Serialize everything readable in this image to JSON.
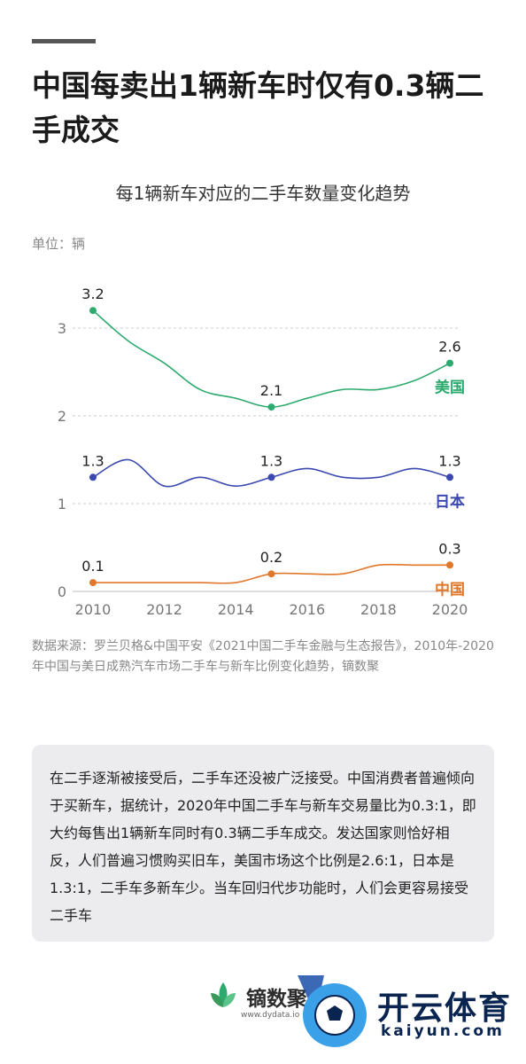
{
  "headline": "中国每卖出1辆新车时仅有0.3辆二手成交",
  "unit_label": "单位：辆",
  "source": "数据来源：罗兰贝格&中国平安《2021中国二手车金融与生态报告》，2010年-2020年中国与美日成熟汽车市场二手车与新车比例变化趋势，镝数聚",
  "note": "在二手逐渐被接受后，二手车还没被广泛接受。中国消费者普遍倾向于买新车，据统计，2020年中国二手车与新车交易量比为0.3:1，即大约每售出1辆新车同时有0.3辆二手车成交。发达国家则恰好相反，人们普遍习惯购买旧车，美国市场这个比例是2.6:1，日本是1.3:1，二手车多新车少。当车回归代步功能时，人们会更容易接受二手车",
  "brand": {
    "name": "镝数聚",
    "url": "www.dydata.io",
    "partner_name": "开云体育",
    "partner_url": "kaiyun.com"
  },
  "colors": {
    "us": "#2eaa6e",
    "japan": "#3a48b0",
    "china": "#e0782c",
    "grid": "#cccccc",
    "axis_text": "#777777"
  },
  "icons": [
    "leaf-logo-icon",
    "soccer-ball-icon"
  ],
  "chart_data": {
    "type": "line",
    "title": "每1辆新车对应的二手车数量变化趋势",
    "ylabel": "单位：辆",
    "xlim": [
      2010,
      2020
    ],
    "ylim": [
      0,
      3.2
    ],
    "x_ticks": [
      2010,
      2012,
      2014,
      2016,
      2018,
      2020
    ],
    "y_ticks": [
      0,
      1,
      2,
      3
    ],
    "grid": "horizontal dashed",
    "series": [
      {
        "name": "美国",
        "color": "#2eaa6e",
        "points": [
          [
            2010,
            3.2
          ],
          [
            2011,
            2.85
          ],
          [
            2012,
            2.6
          ],
          [
            2013,
            2.3
          ],
          [
            2014,
            2.2
          ],
          [
            2015,
            2.1
          ],
          [
            2016,
            2.2
          ],
          [
            2017,
            2.3
          ],
          [
            2018,
            2.3
          ],
          [
            2019,
            2.4
          ],
          [
            2020,
            2.6
          ]
        ],
        "labels": [
          {
            "x": 2010,
            "text": "3.2"
          },
          {
            "x": 2015,
            "text": "2.1"
          },
          {
            "x": 2020,
            "text": "2.6"
          }
        ]
      },
      {
        "name": "日本",
        "color": "#3a48b0",
        "points": [
          [
            2010,
            1.3
          ],
          [
            2011,
            1.5
          ],
          [
            2012,
            1.2
          ],
          [
            2013,
            1.3
          ],
          [
            2014,
            1.2
          ],
          [
            2015,
            1.3
          ],
          [
            2016,
            1.4
          ],
          [
            2017,
            1.3
          ],
          [
            2018,
            1.3
          ],
          [
            2019,
            1.4
          ],
          [
            2020,
            1.3
          ]
        ],
        "labels": [
          {
            "x": 2010,
            "text": "1.3"
          },
          {
            "x": 2015,
            "text": "1.3"
          },
          {
            "x": 2020,
            "text": "1.3"
          }
        ]
      },
      {
        "name": "中国",
        "color": "#e0782c",
        "points": [
          [
            2010,
            0.1
          ],
          [
            2011,
            0.1
          ],
          [
            2012,
            0.1
          ],
          [
            2013,
            0.1
          ],
          [
            2014,
            0.1
          ],
          [
            2015,
            0.2
          ],
          [
            2016,
            0.2
          ],
          [
            2017,
            0.2
          ],
          [
            2018,
            0.3
          ],
          [
            2019,
            0.3
          ],
          [
            2020,
            0.3
          ]
        ],
        "labels": [
          {
            "x": 2010,
            "text": "0.1"
          },
          {
            "x": 2015,
            "text": "0.2"
          },
          {
            "x": 2020,
            "text": "0.3"
          }
        ]
      }
    ]
  }
}
